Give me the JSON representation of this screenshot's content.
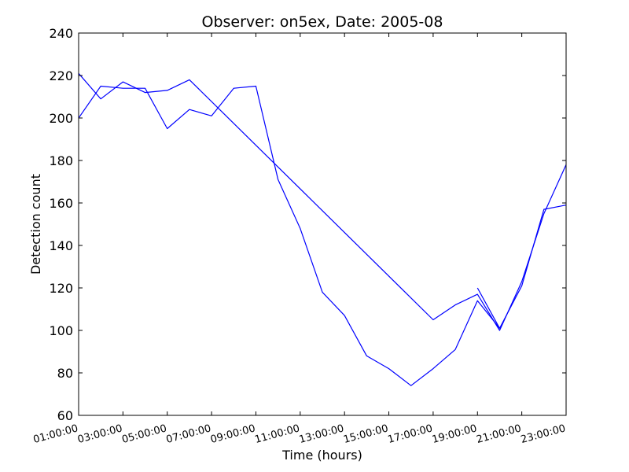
{
  "chart_data": {
    "type": "line",
    "title": "Observer: on5ex, Date: 2005-08",
    "xlabel": "Time (hours)",
    "ylabel": "Detection count",
    "xlim": [
      1,
      23
    ],
    "ylim": [
      60,
      240
    ],
    "x_ticks": [
      {
        "value": 1,
        "label": "01:00:00"
      },
      {
        "value": 3,
        "label": "03:00:00"
      },
      {
        "value": 5,
        "label": "05:00:00"
      },
      {
        "value": 7,
        "label": "07:00:00"
      },
      {
        "value": 9,
        "label": "09:00:00"
      },
      {
        "value": 11,
        "label": "11:00:00"
      },
      {
        "value": 13,
        "label": "13:00:00"
      },
      {
        "value": 15,
        "label": "15:00:00"
      },
      {
        "value": 17,
        "label": "17:00:00"
      },
      {
        "value": 19,
        "label": "19:00:00"
      },
      {
        "value": 21,
        "label": "21:00:00"
      },
      {
        "value": 23,
        "label": "23:00:00"
      }
    ],
    "y_ticks": [
      60,
      80,
      100,
      120,
      140,
      160,
      180,
      200,
      220,
      240
    ],
    "grid": false,
    "legend": "none",
    "series": [
      {
        "color": "#0000ff",
        "x": [
          1,
          2,
          3,
          4,
          5,
          6,
          7,
          8,
          9,
          10,
          11,
          12,
          13,
          14,
          15,
          16,
          17,
          18,
          19,
          20,
          21,
          22,
          23
        ],
        "y": [
          200,
          215,
          214,
          214,
          195,
          204,
          201,
          214,
          215,
          171,
          148,
          118,
          107,
          88,
          82,
          74,
          82,
          91,
          114,
          101,
          121,
          157,
          159
        ]
      },
      {
        "color": "#0000ff",
        "x": [
          1,
          2,
          3,
          4,
          5,
          6,
          17,
          18,
          19,
          20,
          21,
          22,
          23
        ],
        "y": [
          221,
          209,
          217,
          212,
          213,
          218,
          105,
          112,
          117,
          100,
          123,
          155,
          178
        ]
      },
      {
        "color": "#0000ff",
        "x": [
          19,
          20
        ],
        "y": [
          120,
          101
        ]
      }
    ]
  }
}
